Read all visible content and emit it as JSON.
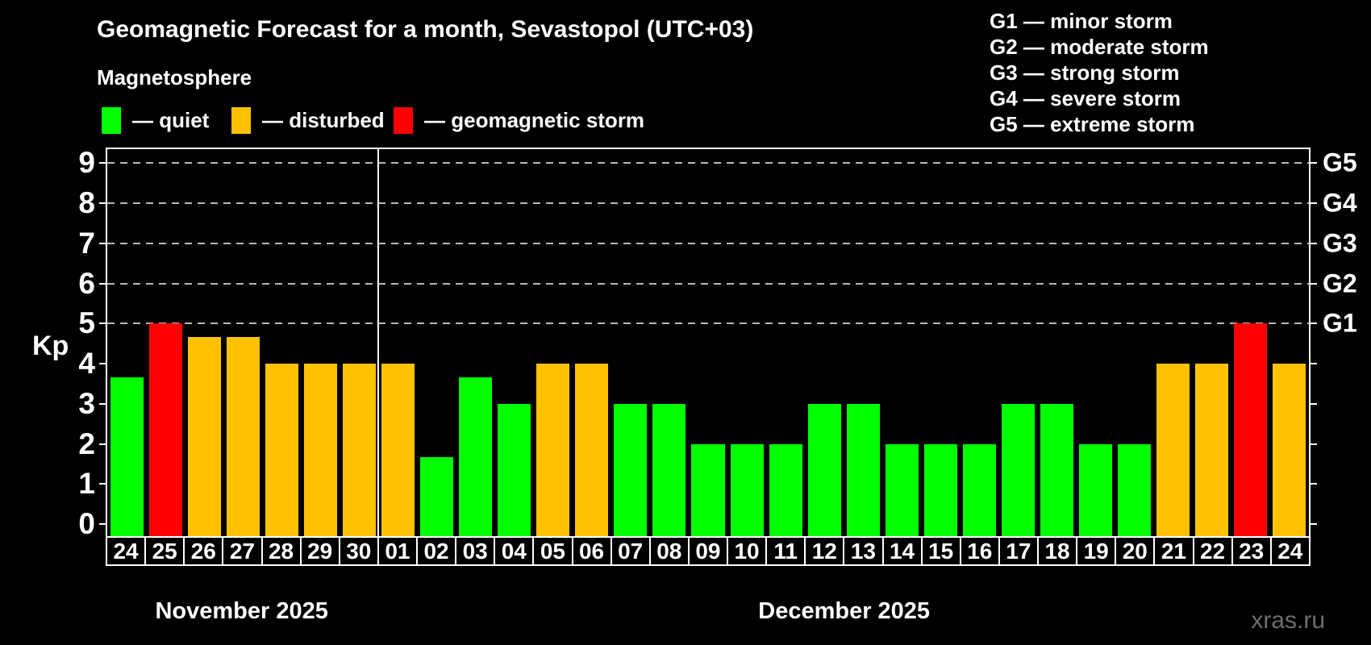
{
  "header": {
    "title": "Geomagnetic Forecast for a month, Sevastopol (UTC+03)",
    "subtitle": "Magnetosphere"
  },
  "legend": {
    "items": [
      {
        "key": "quiet",
        "label": "— quiet",
        "color": "#00ff00"
      },
      {
        "key": "disturbed",
        "label": "— disturbed",
        "color": "#ffc200"
      },
      {
        "key": "storm",
        "label": "— geomagnetic storm",
        "color": "#ff0000"
      }
    ]
  },
  "storm_scale_legend": {
    "lines": [
      "G1 — minor storm",
      "G2 — moderate storm",
      "G3 — strong storm",
      "G4 — severe storm",
      "G5 — extreme storm"
    ]
  },
  "watermark": "xras.ru",
  "chart_data": {
    "type": "bar",
    "title": "Geomagnetic Forecast for a month, Sevastopol (UTC+03)",
    "ylabel": "Kp",
    "ylim": [
      0,
      9
    ],
    "grid": "horizontal dashed lines at Kp 5-9 only",
    "legend_position": "top-left",
    "y_ticks": [
      0,
      1,
      2,
      3,
      4,
      5,
      6,
      7,
      8,
      9
    ],
    "gridline_kp": [
      5,
      6,
      7,
      8,
      9
    ],
    "right_axis_labels": [
      {
        "kp": 5,
        "label": "G1"
      },
      {
        "kp": 6,
        "label": "G2"
      },
      {
        "kp": 7,
        "label": "G3"
      },
      {
        "kp": 8,
        "label": "G4"
      },
      {
        "kp": 9,
        "label": "G5"
      }
    ],
    "categories": [
      "24",
      "25",
      "26",
      "27",
      "28",
      "29",
      "30",
      "01",
      "02",
      "03",
      "04",
      "05",
      "06",
      "07",
      "08",
      "09",
      "10",
      "11",
      "12",
      "13",
      "14",
      "15",
      "16",
      "17",
      "18",
      "19",
      "20",
      "21",
      "22",
      "23",
      "24"
    ],
    "values": [
      3.67,
      5,
      4.67,
      4.67,
      4,
      4,
      4,
      4,
      1.67,
      3.67,
      3,
      4,
      4,
      3,
      3,
      2,
      2,
      2,
      3,
      3,
      2,
      2,
      2,
      3,
      3,
      2,
      2,
      4,
      4,
      5,
      4
    ],
    "statuses": [
      "quiet",
      "storm",
      "disturbed",
      "disturbed",
      "disturbed",
      "disturbed",
      "disturbed",
      "disturbed",
      "quiet",
      "quiet",
      "quiet",
      "disturbed",
      "disturbed",
      "quiet",
      "quiet",
      "quiet",
      "quiet",
      "quiet",
      "quiet",
      "quiet",
      "quiet",
      "quiet",
      "quiet",
      "quiet",
      "quiet",
      "quiet",
      "quiet",
      "disturbed",
      "disturbed",
      "storm",
      "disturbed"
    ],
    "colors": {
      "quiet": "#00ff00",
      "disturbed": "#ffc200",
      "storm": "#ff0000"
    },
    "months": [
      {
        "label": "November 2025",
        "days": 7
      },
      {
        "label": "December 2025",
        "days": 24
      }
    ]
  }
}
